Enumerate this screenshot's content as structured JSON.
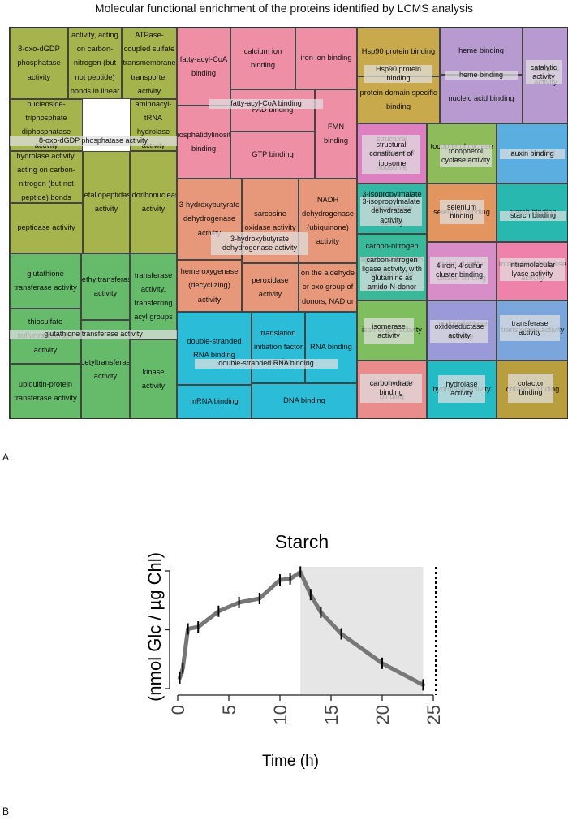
{
  "chart_data": [
    {
      "type": "treemap",
      "title": "Molecular functional enrichment of the proteins identified by LCMS analysis",
      "panel_label": "A",
      "groups": [
        {
          "color": "#a5b44d",
          "tiles": [
            "8-oxo-dGDP phosphatase activity",
            "hydrolase activity, acting on carbon-nitrogen (but not peptide) bonds in linear amidines",
            "ATPase-coupled sulfate transmembrane transporter activity",
            "nucleoside-triphosphate diphosphatase activity",
            "aminoacyl-tRNA hydrolase activity",
            "hydrolase activity, acting on carbon-nitrogen (but not peptide) bonds",
            "peptidase activity",
            "metallopeptidase activity",
            "endoribonuclease activity"
          ],
          "highlight": "8-oxo-dGDP phosphatase activity"
        },
        {
          "color": "#66bb6a",
          "tiles": [
            "glutathione transferase activity",
            "methyltransferase activity",
            "transferase activity, transferring acyl groups",
            "thiosulfate sulfurtransferase activity",
            "ubiquitin-protein transferase activity",
            "acetyltransferase activity",
            "kinase activity"
          ],
          "highlight": "glutathione transferase activity"
        },
        {
          "color": "#ee8fa6",
          "tiles": [
            "fatty-acyl-CoA binding",
            "calcium ion binding",
            "iron ion binding",
            "phosphatidylinositol binding",
            "FAD binding",
            "FMN binding",
            "GTP binding"
          ],
          "highlight": "fatty-acyl-CoA binding"
        },
        {
          "color": "#e8987a",
          "tiles": [
            "3-hydroxybutyrate dehydrogenase activity",
            "sarcosine oxidase activity",
            "NADH dehydrogenase (ubiquinone) activity",
            "heme oxygenase (decyclizing) activity",
            "peroxidase activity",
            "oxidoreductase activity, acting on the aldehyde or oxo group of donors, NAD or NADP as acceptor"
          ],
          "highlight": "3-hydroxybutyrate dehydrogenase activity"
        },
        {
          "color": "#2bbcd8",
          "tiles": [
            "double-stranded RNA binding",
            "translation initiation factor activity",
            "RNA binding",
            "mRNA binding",
            "DNA binding"
          ],
          "highlight": "double-stranded RNA binding"
        },
        {
          "color": "#c8a94c",
          "tiles": [
            "Hsp90 protein binding",
            "protein domain specific binding"
          ],
          "highlight": "Hsp90 protein binding"
        },
        {
          "color": "#b79ad0",
          "tiles": [
            "heme binding",
            "nucleic acid binding"
          ],
          "highlight": "heme binding"
        },
        {
          "color": "#b79ad0",
          "tiles": [
            "catalytic activity"
          ],
          "highlight": "catalytic activity"
        },
        {
          "color": "#dd7fc0",
          "tiles": [
            "structural constituent of ribosome"
          ],
          "highlight": "structural constituent of ribosome"
        },
        {
          "color": "#8fbc5a",
          "tiles": [
            "tocopherol cyclase activity"
          ],
          "highlight": "tocopherol cyclase activity"
        },
        {
          "color": "#5aaee0",
          "tiles": [
            "auxin binding"
          ],
          "highlight": "auxin binding"
        },
        {
          "color": "#32b8a4",
          "tiles": [
            "3-isopropylmalate dehydratase activity"
          ],
          "highlight": "3-isopropylmalate dehydratase activity"
        },
        {
          "color": "#e2955f",
          "tiles": [
            "selenium binding"
          ],
          "highlight": "selenium binding"
        },
        {
          "color": "#28b8b0",
          "tiles": [
            "starch binding"
          ],
          "highlight": "starch binding"
        },
        {
          "color": "#3ab89a",
          "tiles": [
            "carbon-nitrogen ligase activity, with glutamine as amido-N-donor"
          ],
          "highlight": "carbon-nitrogen ligase activity, with glutamine as amido-N-donor"
        },
        {
          "color": "#d88cc8",
          "tiles": [
            "4 iron, 4 sulfur cluster binding"
          ],
          "highlight": "4 iron, 4 sulfur cluster binding"
        },
        {
          "color": "#ef82a8",
          "tiles": [
            "intramolecular lyase activity"
          ],
          "highlight": "intramolecular lyase activity"
        },
        {
          "color": "#7fbe5e",
          "tiles": [
            "isomerase activity"
          ],
          "highlight": "isomerase activity"
        },
        {
          "color": "#9a9ad8",
          "tiles": [
            "oxidoreductase activity"
          ],
          "highlight": "oxidoreductase activity"
        },
        {
          "color": "#7aa6dc",
          "tiles": [
            "transferase activity"
          ],
          "highlight": "transferase activity"
        },
        {
          "color": "#ea8c8c",
          "tiles": [
            "carbohydrate binding"
          ],
          "highlight": "carbohydrate binding"
        },
        {
          "color": "#24bcc4",
          "tiles": [
            "hydrolase activity"
          ],
          "highlight": "hydrolase activity"
        },
        {
          "color": "#b89e3c",
          "tiles": [
            "cofactor binding"
          ],
          "highlight": "cofactor binding"
        }
      ]
    },
    {
      "type": "line",
      "panel_label": "B",
      "title": "Starch",
      "xlabel": "Time (h)",
      "ylabel": "(nmol Glc / µg Chl)",
      "xlim": [
        0,
        25
      ],
      "xticks": [
        0,
        5,
        10,
        15,
        20,
        25
      ],
      "ytick_count": 3,
      "shaded_region": [
        12,
        24
      ],
      "dashed_vline": 25,
      "series": [
        {
          "x": [
            0.2,
            0.5,
            1,
            2,
            4,
            6,
            8,
            10,
            11,
            12,
            13,
            14,
            16,
            20,
            24
          ],
          "y": [
            0.1,
            0.2,
            0.6,
            0.62,
            0.78,
            0.87,
            0.91,
            1.1,
            1.11,
            1.18,
            0.95,
            0.77,
            0.55,
            0.25,
            0.03
          ],
          "color": "#777777"
        }
      ]
    }
  ]
}
